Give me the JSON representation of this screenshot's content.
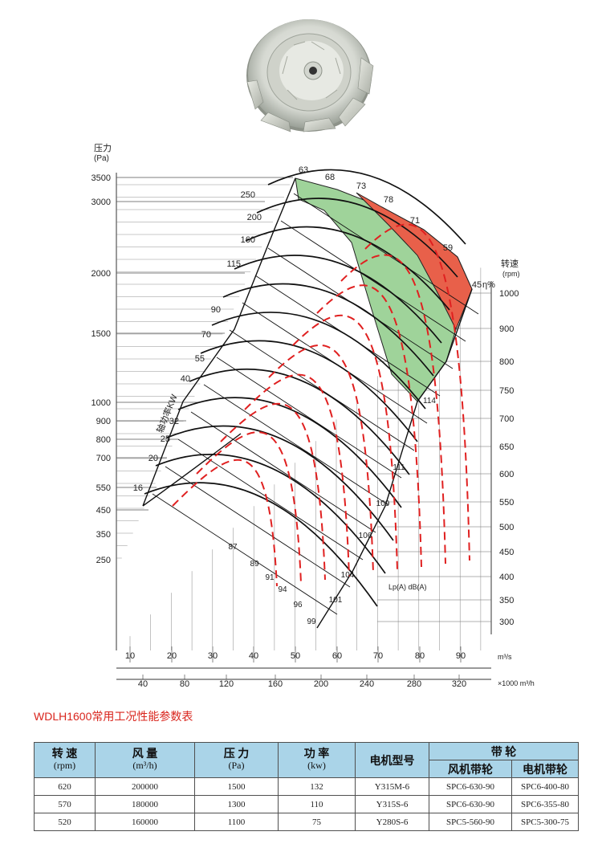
{
  "chart_data": {
    "type": "line",
    "axes": {
      "pressure": {
        "label": "压力",
        "unit": "(Pa)",
        "ticks": [
          "3500",
          "3000",
          "2000",
          "1500",
          "1000",
          "900",
          "800",
          "700",
          "550",
          "450",
          "350",
          "250"
        ]
      },
      "speed": {
        "label": "转速",
        "unit": "(rpm)",
        "ticks": [
          "1000",
          "900",
          "800",
          "750",
          "700",
          "650",
          "600",
          "550",
          "500",
          "450",
          "400",
          "350",
          "300"
        ]
      },
      "flow_m3s": {
        "unit": "m³/s",
        "ticks": [
          "10",
          "20",
          "30",
          "40",
          "50",
          "60",
          "70",
          "80",
          "90"
        ]
      },
      "flow_m3h": {
        "unit": "×1000 m³/h",
        "ticks": [
          "40",
          "80",
          "120",
          "160",
          "200",
          "240",
          "280",
          "320"
        ]
      }
    },
    "power_label": "轴功率KW",
    "power_ticks": [
      "250",
      "200",
      "160",
      "115",
      "90",
      "70",
      "55",
      "40",
      "32",
      "25",
      "20",
      "16"
    ],
    "efficiency_ticks": [
      "63",
      "68",
      "73",
      "78",
      "71",
      "59",
      "45"
    ],
    "efficiency_unit": "η%",
    "noise_label": "Lp(A) dB(A)",
    "noise_ticks": [
      "87",
      "89",
      "91",
      "94",
      "96",
      "99",
      "101",
      "104",
      "106",
      "109",
      "111",
      "114"
    ]
  },
  "table": {
    "title": "WDLH1600常用工况性能参数表",
    "headers": {
      "speed": "转 速",
      "speed_unit": "(rpm)",
      "flow": "风 量",
      "flow_unit": "(m³/h)",
      "pressure": "压 力",
      "pressure_unit": "(Pa)",
      "power": "功 率",
      "power_unit": "(kw)",
      "motor": "电机型号",
      "belt": "带 轮",
      "fan_pulley": "风机带轮",
      "motor_pulley": "电机带轮"
    },
    "rows": [
      {
        "speed": "620",
        "flow": "200000",
        "pressure": "1500",
        "power": "132",
        "motor": "Y315M-6",
        "fan_pulley": "SPC6-630-90",
        "motor_pulley": "SPC6-400-80"
      },
      {
        "speed": "570",
        "flow": "180000",
        "pressure": "1300",
        "power": "110",
        "motor": "Y315S-6",
        "fan_pulley": "SPC6-630-90",
        "motor_pulley": "SPC6-355-80"
      },
      {
        "speed": "520",
        "flow": "160000",
        "pressure": "1100",
        "power": "75",
        "motor": "Y280S-6",
        "fan_pulley": "SPC5-560-90",
        "motor_pulley": "SPC5-300-75"
      }
    ]
  },
  "colors": {
    "green_zone": "#9fd39a",
    "red_zone": "#e8604a",
    "curve_red": "#e02020",
    "header_bg": "#aad4e8",
    "title_red": "#d9251d"
  }
}
